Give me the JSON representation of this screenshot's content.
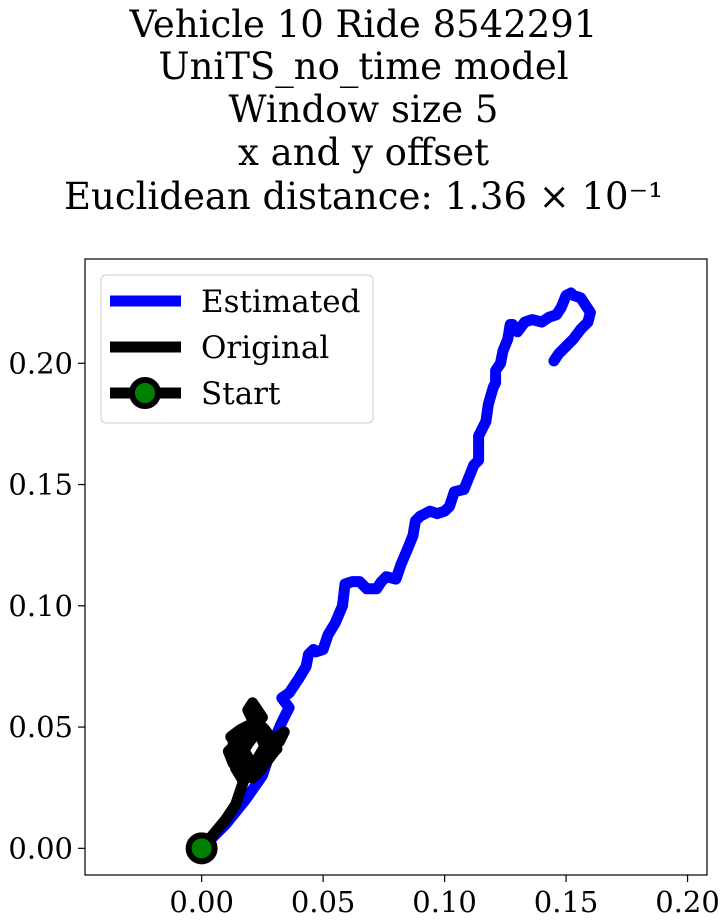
{
  "chart_data": {
    "type": "line",
    "title_lines": [
      "Vehicle 10 Ride 8542291",
      "UniTS_no_time model",
      "Window size 5",
      "x and y offset",
      "Euclidean distance: 1.36 × 10⁻¹"
    ],
    "xlabel": "",
    "ylabel": "",
    "xlim": [
      -0.048,
      0.208
    ],
    "ylim": [
      -0.011,
      0.243
    ],
    "xticks": [
      0.0,
      0.05,
      0.1,
      0.15,
      0.2
    ],
    "xtick_labels": [
      "0.00",
      "0.05",
      "0.10",
      "0.15",
      "0.20"
    ],
    "yticks": [
      0.0,
      0.05,
      0.1,
      0.15,
      0.2
    ],
    "ytick_labels": [
      "0.00",
      "0.05",
      "0.10",
      "0.15",
      "0.20"
    ],
    "grid": false,
    "legend_position": "top-left",
    "series": [
      {
        "name": "Estimated",
        "color": "#0000ff",
        "x": [
          0.0,
          0.01,
          0.018,
          0.025,
          0.03,
          0.033,
          0.036,
          0.033,
          0.036,
          0.04,
          0.043,
          0.044,
          0.046,
          0.047,
          0.05,
          0.052,
          0.055,
          0.058,
          0.059,
          0.062,
          0.065,
          0.068,
          0.072,
          0.074,
          0.076,
          0.08,
          0.082,
          0.085,
          0.087,
          0.088,
          0.09,
          0.094,
          0.097,
          0.1,
          0.102,
          0.104,
          0.108,
          0.11,
          0.112,
          0.114,
          0.114,
          0.117,
          0.118,
          0.12,
          0.121,
          0.121,
          0.123,
          0.124,
          0.126,
          0.127,
          0.128,
          0.13,
          0.133,
          0.136,
          0.14,
          0.143,
          0.146,
          0.148,
          0.15,
          0.152,
          0.153,
          0.156,
          0.158,
          0.16,
          0.159,
          0.156,
          0.153,
          0.15,
          0.147,
          0.145
        ],
        "y": [
          0.0,
          0.01,
          0.02,
          0.03,
          0.045,
          0.052,
          0.058,
          0.062,
          0.064,
          0.07,
          0.075,
          0.08,
          0.082,
          0.081,
          0.082,
          0.088,
          0.093,
          0.1,
          0.109,
          0.11,
          0.11,
          0.107,
          0.107,
          0.11,
          0.112,
          0.111,
          0.117,
          0.124,
          0.129,
          0.135,
          0.137,
          0.139,
          0.138,
          0.139,
          0.141,
          0.147,
          0.148,
          0.153,
          0.158,
          0.16,
          0.17,
          0.176,
          0.183,
          0.19,
          0.192,
          0.197,
          0.2,
          0.205,
          0.21,
          0.216,
          0.216,
          0.213,
          0.217,
          0.218,
          0.217,
          0.219,
          0.22,
          0.223,
          0.228,
          0.229,
          0.228,
          0.227,
          0.224,
          0.221,
          0.217,
          0.214,
          0.21,
          0.207,
          0.204,
          0.201
        ]
      },
      {
        "name": "Original",
        "color": "#000000",
        "x": [
          0.0,
          0.005,
          0.01,
          0.014,
          0.016,
          0.018,
          0.013,
          0.011,
          0.015,
          0.018,
          0.021,
          0.024,
          0.026,
          0.023,
          0.019,
          0.016,
          0.014,
          0.012,
          0.016,
          0.02,
          0.024,
          0.028,
          0.031,
          0.034,
          0.032,
          0.027,
          0.023,
          0.02,
          0.017,
          0.014,
          0.016,
          0.019,
          0.022,
          0.025,
          0.028,
          0.03,
          0.027,
          0.024,
          0.021,
          0.018,
          0.015,
          0.013,
          0.015,
          0.019,
          0.023,
          0.026,
          0.029,
          0.031,
          0.028,
          0.025,
          0.022,
          0.02,
          0.017,
          0.019,
          0.022,
          0.021,
          0.019,
          0.021,
          0.023,
          0.025
        ],
        "y": [
          0.0,
          0.006,
          0.012,
          0.018,
          0.024,
          0.03,
          0.035,
          0.04,
          0.044,
          0.048,
          0.051,
          0.047,
          0.042,
          0.037,
          0.033,
          0.038,
          0.043,
          0.046,
          0.049,
          0.051,
          0.047,
          0.042,
          0.046,
          0.048,
          0.044,
          0.039,
          0.034,
          0.03,
          0.028,
          0.033,
          0.038,
          0.043,
          0.047,
          0.05,
          0.045,
          0.04,
          0.036,
          0.032,
          0.029,
          0.034,
          0.039,
          0.043,
          0.046,
          0.049,
          0.052,
          0.049,
          0.045,
          0.041,
          0.038,
          0.034,
          0.031,
          0.036,
          0.041,
          0.045,
          0.048,
          0.053,
          0.057,
          0.06,
          0.057,
          0.054
        ]
      },
      {
        "name": "Start",
        "color": "#000000",
        "marker_face": "#008000",
        "x": [
          0.0
        ],
        "y": [
          0.0
        ]
      }
    ]
  }
}
